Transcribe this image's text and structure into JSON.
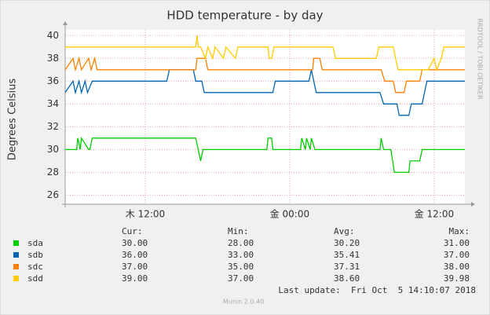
{
  "chart_data": {
    "type": "line",
    "title": "HDD temperature - by day",
    "y_label": "Degrees Celsius",
    "side_text": "RRDTOOL / TOBI OETIKER",
    "xlim": [
      5.35,
      38.55
    ],
    "xticks": [
      {
        "value": 12,
        "label": "木 12:00"
      },
      {
        "value": 24,
        "label": "金 00:00"
      },
      {
        "value": 36,
        "label": "金 12:00"
      }
    ],
    "ylim": [
      25.2,
      40.5
    ],
    "yticks": [
      26,
      28,
      30,
      32,
      34,
      36,
      38,
      40
    ],
    "grid": true,
    "stats_headers": [
      "Cur:",
      "Min:",
      "Avg:",
      "Max:"
    ],
    "series": [
      {
        "name": "sda",
        "color": "#00cc00",
        "x": [
          5.35,
          6.3,
          6.4,
          6.6,
          6.7,
          7.3,
          7.4,
          7.6,
          16.2,
          16.4,
          16.6,
          16.8,
          22.1,
          22.2,
          22.5,
          22.6,
          24.9,
          25.0,
          25.3,
          25.4,
          25.7,
          25.8,
          26.1,
          26.2,
          31.5,
          31.6,
          31.8,
          32.4,
          32.7,
          33.9,
          34.0,
          34.8,
          35.0,
          38.55
        ],
        "values": [
          30,
          30,
          31,
          30,
          31,
          30,
          30,
          31,
          31,
          30,
          29,
          30,
          30,
          31,
          31,
          30,
          30,
          31,
          30,
          31,
          30,
          31,
          30,
          30,
          30,
          31,
          30,
          30,
          28,
          28,
          29,
          29,
          30,
          30
        ],
        "stats": [
          "30.00",
          "28.00",
          "30.20",
          "31.00"
        ]
      },
      {
        "name": "sdb",
        "color": "#0066b3",
        "x": [
          5.35,
          6.0,
          6.2,
          6.5,
          6.7,
          7.0,
          7.2,
          7.6,
          13.8,
          14.0,
          16.0,
          16.2,
          16.7,
          16.9,
          22.6,
          22.8,
          25.6,
          25.8,
          26.0,
          26.2,
          31.5,
          31.8,
          32.9,
          33.1,
          33.9,
          34.1,
          35.0,
          35.2,
          35.4,
          38.55
        ],
        "values": [
          35,
          36,
          35,
          36,
          35,
          36,
          35,
          36,
          36,
          37,
          37,
          36,
          36,
          35,
          35,
          36,
          36,
          37,
          36,
          35,
          35,
          34,
          34,
          33,
          33,
          34,
          34,
          35,
          36,
          36
        ],
        "stats": [
          "36.00",
          "33.00",
          "35.41",
          "37.00"
        ]
      },
      {
        "name": "sdc",
        "color": "#ff8000",
        "x": [
          5.35,
          6.0,
          6.2,
          6.5,
          6.7,
          7.3,
          7.5,
          7.8,
          8.0,
          16.2,
          16.3,
          17.0,
          17.2,
          25.9,
          26.0,
          26.5,
          26.7,
          31.6,
          31.9,
          32.6,
          32.8,
          33.5,
          33.7,
          34.8,
          35.0,
          38.55
        ],
        "values": [
          37,
          38,
          37,
          38,
          37,
          38,
          37,
          38,
          37,
          37,
          38,
          38,
          37,
          37,
          38,
          38,
          37,
          37,
          36,
          36,
          35,
          35,
          36,
          36,
          37,
          37
        ],
        "stats": [
          "37.00",
          "35.00",
          "37.31",
          "38.00"
        ]
      },
      {
        "name": "sdd",
        "color": "#ffcc00",
        "x": [
          5.35,
          16.2,
          16.3,
          16.4,
          16.6,
          17.0,
          17.2,
          17.6,
          17.8,
          18.5,
          18.7,
          19.5,
          19.7,
          22.2,
          22.3,
          22.5,
          22.7,
          27.6,
          27.8,
          31.2,
          31.4,
          32.6,
          32.8,
          33.0,
          35.5,
          36.0,
          36.2,
          36.6,
          36.8,
          38.55
        ],
        "values": [
          39,
          39,
          40,
          39,
          39,
          38,
          39,
          38,
          39,
          38,
          39,
          38,
          39,
          39,
          38,
          38,
          39,
          39,
          38,
          38,
          39,
          39,
          38,
          37,
          37,
          38,
          37,
          38,
          39,
          39
        ],
        "stats": [
          "39.00",
          "37.00",
          "38.60",
          "39.98"
        ]
      }
    ],
    "last_update": "Last update:  Fri Oct  5 14:10:07 2018",
    "footer": "Munin 2.0.40"
  }
}
